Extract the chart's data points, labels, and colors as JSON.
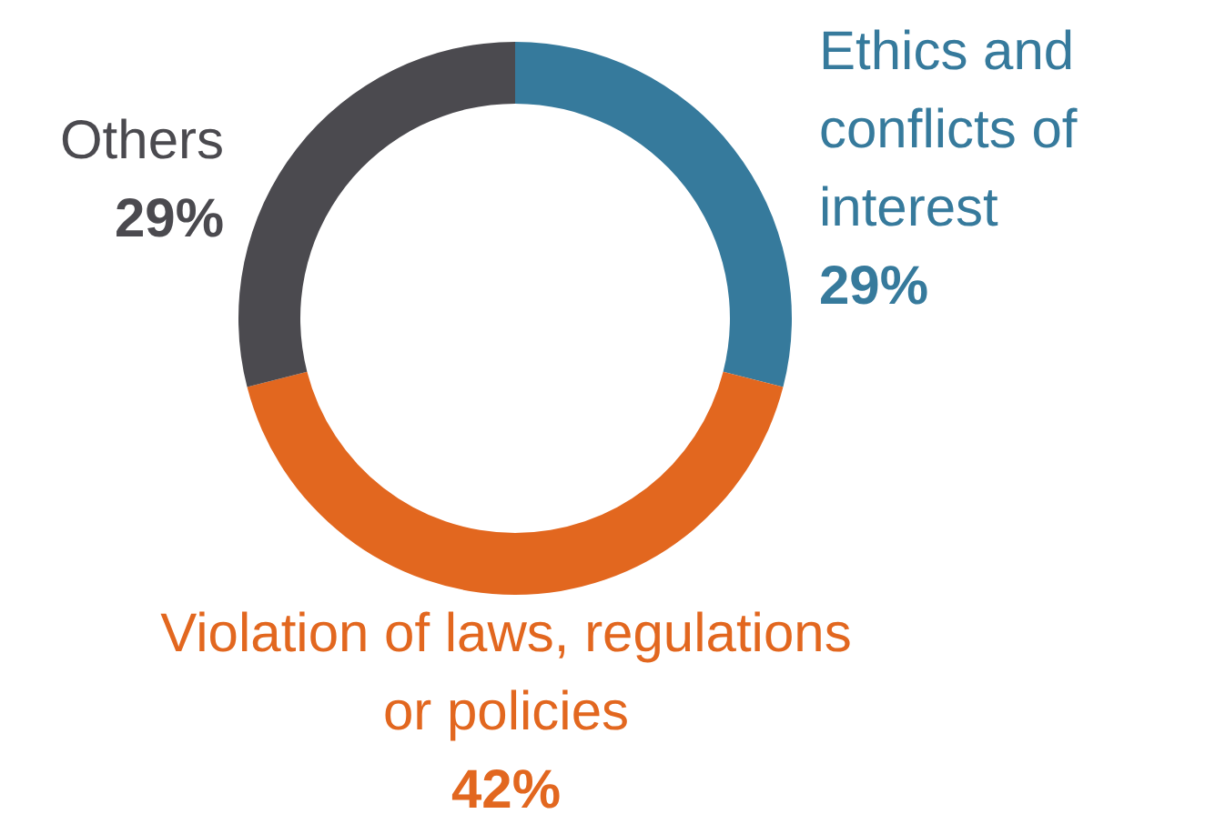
{
  "chart_data": {
    "type": "donut",
    "categories": [
      "Ethics and conflicts of interest",
      "Violation of laws, regulations or policies",
      "Others"
    ],
    "values": [
      29,
      42,
      29
    ],
    "colors": [
      "#367a9c",
      "#e2671f",
      "#4b4a4f"
    ],
    "value_labels": [
      "29%",
      "42%",
      "29%"
    ]
  }
}
